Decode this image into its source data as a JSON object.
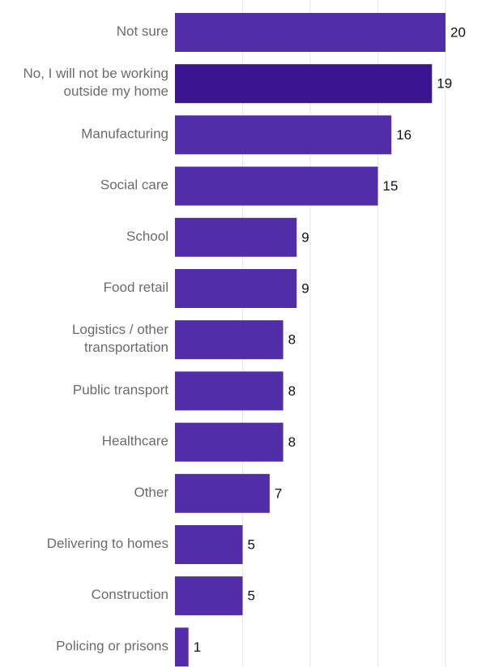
{
  "chart_data": {
    "type": "bar",
    "orientation": "horizontal",
    "title": "",
    "xlabel": "",
    "ylabel": "",
    "categories": [
      [
        "Not sure"
      ],
      [
        "No, I will not be working",
        "outside my home"
      ],
      [
        "Manufacturing"
      ],
      [
        "Social care"
      ],
      [
        "School"
      ],
      [
        "Food retail"
      ],
      [
        "Logistics / other",
        "transportation"
      ],
      [
        "Public transport"
      ],
      [
        "Healthcare"
      ],
      [
        "Other"
      ],
      [
        "Delivering to homes"
      ],
      [
        "Construction"
      ],
      [
        "Policing or prisons"
      ]
    ],
    "values": [
      20,
      19,
      16,
      15,
      9,
      9,
      8,
      8,
      8,
      7,
      5,
      5,
      1
    ],
    "value_labels": [
      "20",
      "19",
      "16",
      "15",
      "9",
      "9",
      "8",
      "8",
      "8",
      "7",
      "5",
      "5",
      "1"
    ],
    "xlim": [
      0,
      20
    ],
    "gridlines": [
      5,
      10,
      15,
      20
    ],
    "grid": true,
    "legend": false,
    "colors": {
      "bar": "#522da8",
      "highlight_bar": "#3b1590",
      "highlight_index": 1,
      "category_text": "#6b6b6b",
      "value_text": "#111111",
      "grid": "#e6e6e6"
    }
  }
}
